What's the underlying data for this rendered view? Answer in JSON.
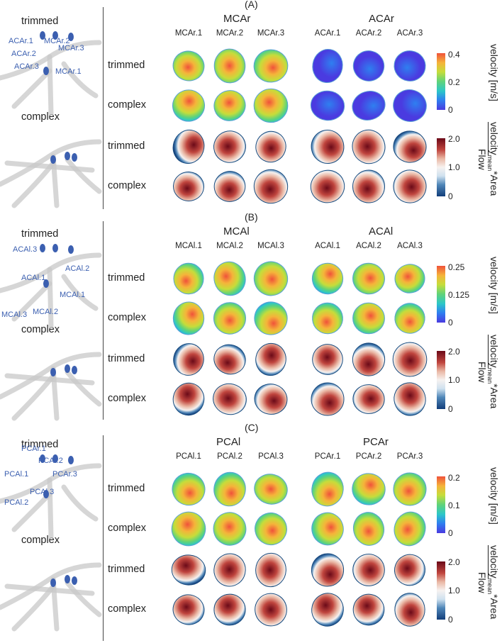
{
  "colors": {
    "velocity_scale": [
      "#4a3be0",
      "#2f7ff0",
      "#2cc6c9",
      "#5fd37a",
      "#c6dd3a",
      "#f5b43a",
      "#f0523a"
    ],
    "ratio_scale": [
      "#123e7a",
      "#4f86b8",
      "#cfe1ef",
      "#f6f2f0",
      "#eab7a4",
      "#c0453e",
      "#6b0a18"
    ],
    "vessel_marker": "#3b5fb0",
    "vessel_gray": "#c8c8c8"
  },
  "panels": [
    {
      "label": "(A)",
      "groups": [
        {
          "title": "MCAr",
          "columns": [
            "MCAr.1",
            "MCAr.2",
            "MCAr.3"
          ]
        },
        {
          "title": "ACAr",
          "columns": [
            "ACAr.1",
            "ACAr.2",
            "ACAr.3"
          ]
        }
      ],
      "rows": [
        "trimmed",
        "complex",
        "trimmed",
        "complex"
      ],
      "left": {
        "top": "trimmed",
        "bottom": "complex",
        "vessel_labels": [
          "ACAr.1",
          "MCAr.2",
          "ACAr.2",
          "MCAr.3",
          "ACAr.3",
          "MCAr.1"
        ]
      },
      "velocity_ticks": [
        "0.4",
        "0.2",
        "0"
      ],
      "ratio_ticks": [
        "2.0",
        "1.0",
        "0"
      ]
    },
    {
      "label": "(B)",
      "groups": [
        {
          "title": "MCAl",
          "columns": [
            "MCAl.1",
            "MCAl.2",
            "MCAl.3"
          ]
        },
        {
          "title": "ACAl",
          "columns": [
            "ACAl.1",
            "ACAl.2",
            "ACAl.3"
          ]
        }
      ],
      "rows": [
        "trimmed",
        "complex",
        "trimmed",
        "complex"
      ],
      "left": {
        "top": "trimmed",
        "bottom": "complex",
        "vessel_labels": [
          "ACAl.3",
          "ACAl.1",
          "ACAl.2",
          "MCAl.1",
          "MCAl.3",
          "MCAl.2"
        ]
      },
      "velocity_ticks": [
        "0.25",
        "0.125",
        "0"
      ],
      "ratio_ticks": [
        "2.0",
        "1.0",
        "0"
      ]
    },
    {
      "label": "(C)",
      "groups": [
        {
          "title": "PCAl",
          "columns": [
            "PCAl.1",
            "PCAl.2",
            "PCAl.3"
          ]
        },
        {
          "title": "PCAr",
          "columns": [
            "PCAr.1",
            "PCAr.2",
            "PCAr.3"
          ]
        }
      ],
      "rows": [
        "trimmed",
        "complex",
        "trimmed",
        "complex"
      ],
      "left": {
        "top": "trimmed",
        "bottom": "complex",
        "vessel_labels": [
          "PCAr.1",
          "PCAr.2",
          "PCAl.1",
          "PCAr.3",
          "PCAl.3",
          "PCAl.2"
        ]
      },
      "velocity_ticks": [
        "0.2",
        "0.1",
        "0"
      ],
      "ratio_ticks": [
        "2.0",
        "1.0",
        "0"
      ]
    }
  ],
  "axis_labels": {
    "velocity": "velocity [m/s]",
    "ratio_num": "velocity",
    "ratio_sub": "mean",
    "ratio_tail": "*Area",
    "ratio_den": "Flow"
  }
}
